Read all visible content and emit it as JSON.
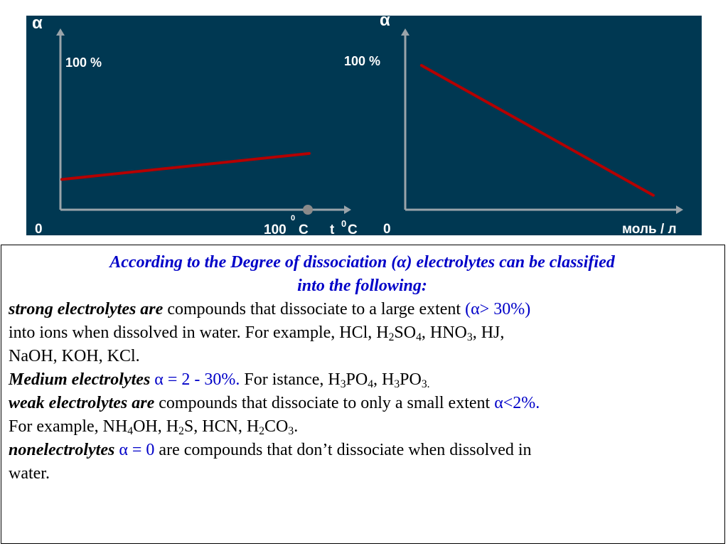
{
  "chart_data": [
    {
      "type": "line",
      "ylabel": "α",
      "xlabel": "t ⁰C",
      "y_tick_top": "100 %",
      "origin_label": "0",
      "x_tick_label": "100",
      "x_tick_unit": "C",
      "x_tick_superscript": "0",
      "xlabel_main": "t",
      "xlabel_sup": "0",
      "xlabel_unit": "C",
      "ylim": [
        0,
        100
      ],
      "xlim": [
        0,
        100
      ],
      "series": [
        {
          "x": [
            0,
            100
          ],
          "y": [
            21,
            39
          ]
        }
      ],
      "colors": {
        "line": "#b40000",
        "axis": "#9aa4aa",
        "background": "#003852",
        "marker": "#8a8a8a"
      }
    },
    {
      "type": "line",
      "ylabel": "α",
      "xlabel": "моль / л",
      "y_tick_top": "100 %",
      "origin_label": "0",
      "ylim": [
        0,
        100
      ],
      "xlim": [
        0,
        100
      ],
      "series": [
        {
          "x": [
            6,
            100
          ],
          "y": [
            100,
            10
          ]
        }
      ],
      "colors": {
        "line": "#b40000",
        "axis": "#9aa4aa",
        "background": "#003852"
      }
    }
  ],
  "text": {
    "heading_line1": "According to the Degree of dissociation (α)  electrolytes can be classified",
    "heading_line2": "into the following:",
    "strong_term": "strong electrolytes are",
    "strong_desc": " compounds that dissociate to a large extent ",
    "strong_alpha": "(α> 30%)",
    "strong_line2_start": "into ions when dissolved in water. For example, HCl, H",
    "sub_2": "2",
    "so": "SO",
    "sub_4": "4",
    "hno_prefix": ", HNO",
    "sub_3": "3",
    "strong_line2_end": ", HJ,",
    "strong_line3": "NaOH, KOH, KCl.",
    "medium_term": "Medium electrolytes",
    "medium_alpha": " α = 2 - 30%.",
    "medium_example_start": " For istance, H",
    "po": "PO",
    "h_sep": ", H",
    "sub_3_dot": "3.",
    "weak_term": "weak electrolytes are",
    "weak_desc": " compounds that dissociate to only a small extent ",
    "weak_alpha": "α<2%.",
    "weak_line2_start": "For example, NH",
    "oh_h": "OH, H",
    "s_hcn_h": "S, HCN, H",
    "co": "CO",
    "dot": ".",
    "non_term": "nonelectrolytes",
    "non_alpha": " α = 0",
    "non_desc": " are compounds that don’t dissociate when dissolved in",
    "non_line2": "water."
  }
}
